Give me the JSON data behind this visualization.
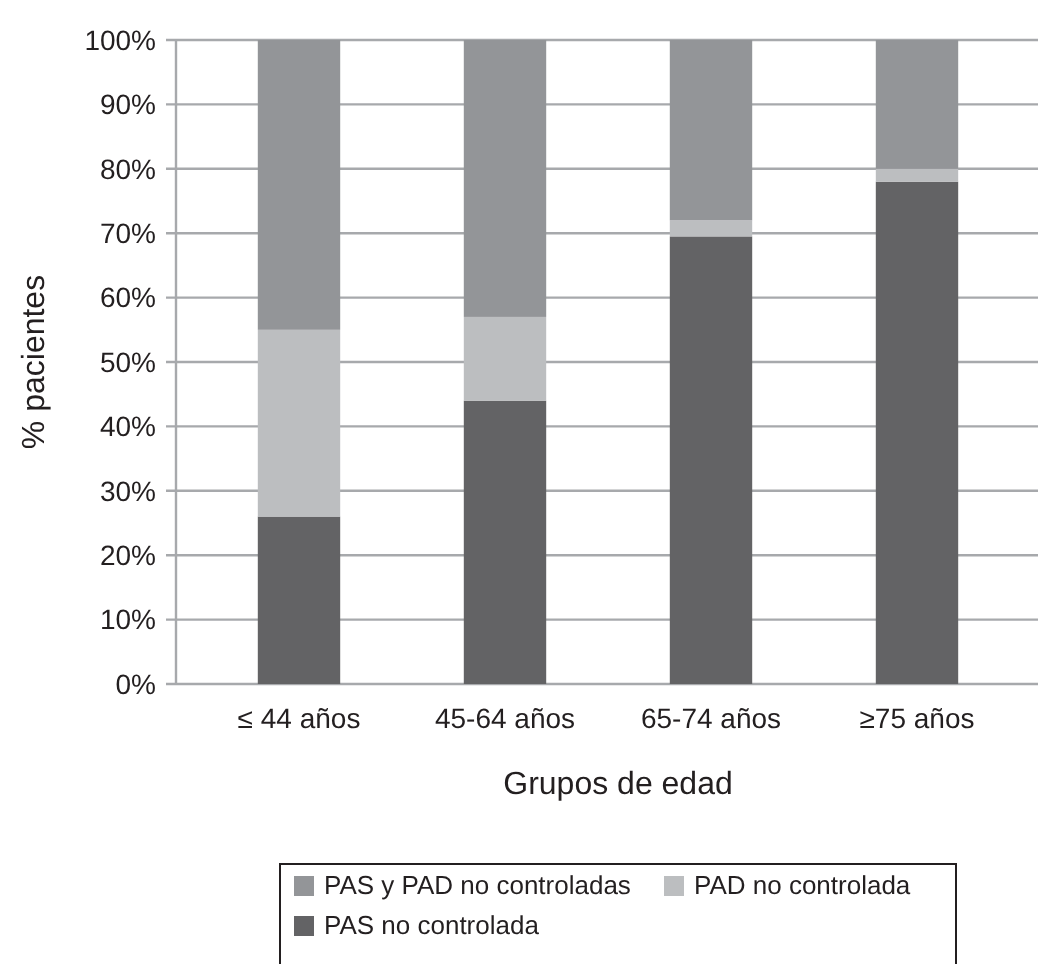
{
  "chart_data": {
    "type": "bar",
    "stacked": true,
    "ylabel": "% pacientes",
    "xlabel": "Grupos de edad",
    "categories": [
      "≤ 44 años",
      "45-64 años",
      "65-74 años",
      "≥75 años"
    ],
    "series": [
      {
        "name": "PAS no controlada",
        "color": "#636365",
        "values": [
          26,
          44,
          69.5,
          78
        ]
      },
      {
        "name": "PAD no controlada",
        "color": "#bcbec0",
        "values": [
          29,
          13,
          2.5,
          2
        ]
      },
      {
        "name": "PAS y PAD no controladas",
        "color": "#939598",
        "values": [
          45,
          43,
          28,
          20
        ]
      }
    ],
    "ylim": [
      0,
      100
    ],
    "yticks": [
      {
        "value": 0,
        "label": "0%"
      },
      {
        "value": 10,
        "label": "10%"
      },
      {
        "value": 20,
        "label": "20%"
      },
      {
        "value": 30,
        "label": "30%"
      },
      {
        "value": 40,
        "label": "40%"
      },
      {
        "value": 50,
        "label": "50%"
      },
      {
        "value": 60,
        "label": "60%"
      },
      {
        "value": 70,
        "label": "70%"
      },
      {
        "value": 80,
        "label": "80%"
      },
      {
        "value": 90,
        "label": "90%"
      },
      {
        "value": 100,
        "label": "100%"
      }
    ],
    "grid": "y",
    "legend": "bottom"
  }
}
